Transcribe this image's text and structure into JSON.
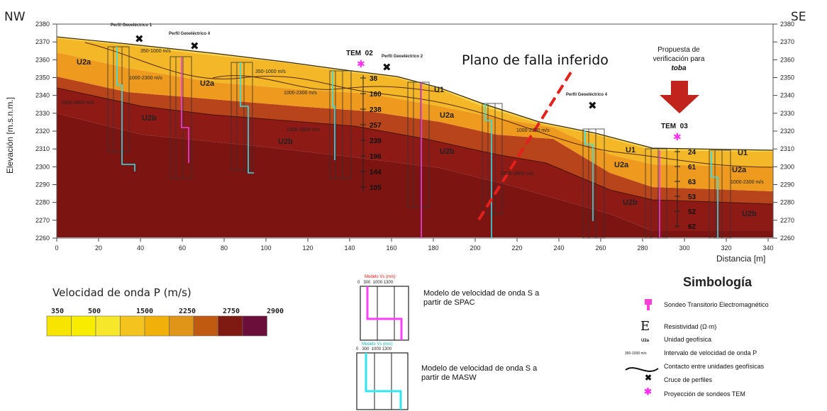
{
  "directions": {
    "left": "NW",
    "right": "SE"
  },
  "axes": {
    "ylabel": "Elevación [m.s.n.m.]",
    "xlabel": "Distancia [m]",
    "y_ticks": [
      "2380",
      "2370",
      "2360",
      "2350",
      "2340",
      "2330",
      "2320",
      "2310",
      "2300",
      "2290",
      "2280",
      "2270",
      "2260"
    ],
    "x_ticks": [
      "0",
      "20",
      "40",
      "60",
      "80",
      "100",
      "120",
      "140",
      "160",
      "180",
      "200",
      "220",
      "240",
      "260",
      "280",
      "300",
      "320",
      "340"
    ]
  },
  "annotations": {
    "fault_plane": "Plano de falla inferido",
    "proposal_line1": "Propuesta de",
    "proposal_line2": "verificación para",
    "proposal_line3": "toba",
    "tem02": "TEM  02",
    "tem03": "TEM  03",
    "tem02_values": [
      "38",
      "160",
      "238",
      "257",
      "239",
      "196",
      "144",
      "105"
    ],
    "tem03_values": [
      "24",
      "61",
      "63",
      "53",
      "52",
      "62"
    ]
  },
  "profiles": [
    {
      "label": "Perfil Geoeléctrico 1"
    },
    {
      "label": "Perfil Geoeléctrico 4"
    },
    {
      "label": "Perfil Geoeléctrico 2"
    },
    {
      "label": "Perfil Geoeléctrico 4"
    }
  ],
  "units": [
    {
      "label": "U2a"
    },
    {
      "label": "U2a"
    },
    {
      "label": "U1"
    },
    {
      "label": "U2a"
    },
    {
      "label": "U2b"
    },
    {
      "label": "U2b"
    },
    {
      "label": "U2b"
    },
    {
      "label": "U1"
    },
    {
      "label": "U2a"
    },
    {
      "label": "U2b"
    },
    {
      "label": "U1"
    },
    {
      "label": "U2a"
    },
    {
      "label": "U2b"
    }
  ],
  "velocity_labels": [
    {
      "label": "350-1000 m/s"
    },
    {
      "label": "1000-2300 m/s"
    },
    {
      "label": "350-1000 m/s"
    },
    {
      "label": "1000-2300 m/s"
    },
    {
      "label": "2300-2900 m/s"
    },
    {
      "label": "2300-2900 m/s"
    },
    {
      "label": "1000-2300 m/s"
    },
    {
      "label": "2300-2900 m/s"
    },
    {
      "label": "1000-2300 m/s"
    }
  ],
  "velocity_legend": {
    "title": "Velocidad de onda P (m/s)",
    "ticks": [
      "350",
      "500",
      "1500",
      "2250",
      "2750",
      "2900"
    ],
    "colors": [
      "#f7e400",
      "#f8ec00",
      "#f7e72a",
      "#f5c31d",
      "#f1b10a",
      "#e09418",
      "#bf5a10",
      "#7e1a12",
      "#6b0e3a"
    ]
  },
  "models": [
    {
      "axis_title": "Modelo Vs (m/s)",
      "ticks": "0   300  1000 1300",
      "text": "Modelo de velocidad  de onda  S a partir de SPAC",
      "color": "#ff40ff"
    },
    {
      "axis_title": "Modelo Vs (m/s)",
      "ticks": "0   300  1000 1300",
      "text": "Modelo de velocidad  de onda  S a partir de MASW",
      "color": "#33e6ee"
    }
  ],
  "simbologia": {
    "title": "Simbología",
    "items": [
      {
        "icon": "tem-sounding-icon",
        "symbol": "",
        "text": "Sondeo Transitorio Electromagnético"
      },
      {
        "icon": "resistivity-icon",
        "symbol": "E",
        "text": "Resistividad (Ω·m)"
      },
      {
        "icon": "geophysical-unit-icon",
        "symbol": "U2a",
        "text": "Unidad geofísica"
      },
      {
        "icon": "velocity-interval-icon",
        "symbol": "350-1000 m/s",
        "text": "Intervalo de velocidad de onda P"
      },
      {
        "icon": "contact-line-icon",
        "symbol": "",
        "text": "Contacto entre unidades geofísicas"
      },
      {
        "icon": "profile-cross-icon",
        "symbol": "✖",
        "text": "Cruce de perfiles"
      },
      {
        "icon": "tem-projection-icon",
        "symbol": "✱",
        "text": "Proyección de sondeos TEM"
      }
    ]
  }
}
